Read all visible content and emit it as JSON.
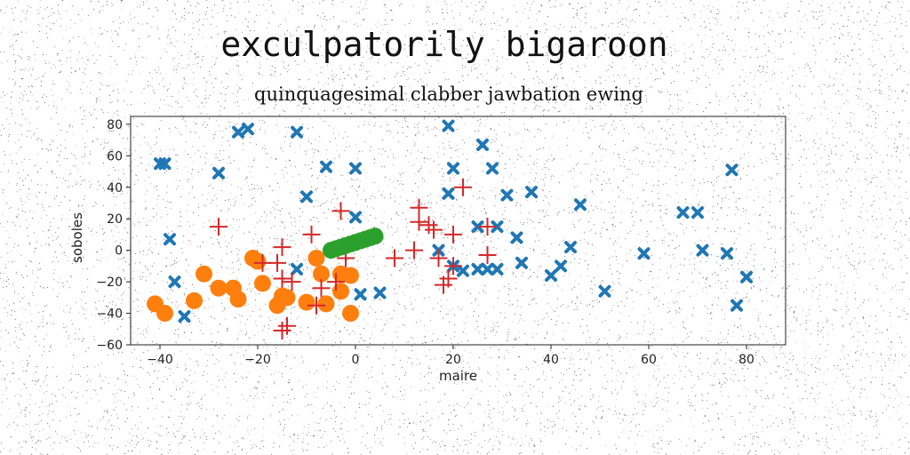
{
  "title": "exculpatorily bigaroon",
  "subtitle": "quinquagesimal clabber jawbation ewing",
  "chart_data": {
    "type": "scatter",
    "xlabel": "maire",
    "ylabel": "soboles",
    "xlim": [
      -46,
      88
    ],
    "ylim": [
      -60,
      85
    ],
    "xticks": [
      -40,
      -20,
      0,
      20,
      40,
      60,
      80
    ],
    "yticks": [
      -60,
      -40,
      -20,
      0,
      20,
      40,
      60,
      80
    ],
    "grid": false,
    "legend": "none",
    "series": [
      {
        "marker": "x-thick",
        "color": "#1f77b4",
        "points": [
          [
            -40,
            55
          ],
          [
            -39,
            55
          ],
          [
            -38,
            7
          ],
          [
            -37,
            -20
          ],
          [
            -35,
            -42
          ],
          [
            -28,
            49
          ],
          [
            -24,
            75
          ],
          [
            -22,
            77
          ],
          [
            -12,
            75
          ],
          [
            -12,
            -12
          ],
          [
            -10,
            34
          ],
          [
            -6,
            53
          ],
          [
            0,
            52
          ],
          [
            0,
            21
          ],
          [
            1,
            -28
          ],
          [
            5,
            -27
          ],
          [
            19,
            79
          ],
          [
            19,
            36
          ],
          [
            20,
            52
          ],
          [
            17,
            0
          ],
          [
            20,
            -10
          ],
          [
            22,
            -13
          ],
          [
            25,
            15
          ],
          [
            25,
            -12
          ],
          [
            26,
            67
          ],
          [
            27,
            -12
          ],
          [
            28,
            52
          ],
          [
            29,
            -12
          ],
          [
            29,
            15
          ],
          [
            31,
            35
          ],
          [
            33,
            8
          ],
          [
            34,
            -8
          ],
          [
            36,
            37
          ],
          [
            40,
            -16
          ],
          [
            42,
            -10
          ],
          [
            44,
            2
          ],
          [
            46,
            29
          ],
          [
            51,
            -26
          ],
          [
            59,
            -2
          ],
          [
            67,
            24
          ],
          [
            70,
            24
          ],
          [
            71,
            0
          ],
          [
            76,
            -2
          ],
          [
            77,
            51
          ],
          [
            78,
            -35
          ],
          [
            80,
            -17
          ]
        ]
      },
      {
        "marker": "circle",
        "color": "#ff7f0e",
        "points": [
          [
            -41,
            -34
          ],
          [
            -39,
            -40
          ],
          [
            -33,
            -32
          ],
          [
            -31,
            -15
          ],
          [
            -28,
            -24
          ],
          [
            -25,
            -24
          ],
          [
            -24,
            -31
          ],
          [
            -21,
            -5
          ],
          [
            -20,
            -7
          ],
          [
            -19,
            -21
          ],
          [
            -16,
            -35
          ],
          [
            -15,
            -29
          ],
          [
            -14,
            -30
          ],
          [
            -10,
            -33
          ],
          [
            -8,
            -5
          ],
          [
            -7,
            -15
          ],
          [
            -6,
            -34
          ],
          [
            -3,
            -15
          ],
          [
            -3,
            -26
          ],
          [
            -1,
            -16
          ],
          [
            -1,
            -40
          ]
        ]
      },
      {
        "marker": "plus",
        "color": "#d62728",
        "points": [
          [
            -28,
            15
          ],
          [
            -19,
            -8
          ],
          [
            -15,
            2
          ],
          [
            -16,
            -8
          ],
          [
            -15,
            -18
          ],
          [
            -14,
            -48
          ],
          [
            -15,
            -51
          ],
          [
            -13,
            -20
          ],
          [
            -9,
            10
          ],
          [
            -8,
            -35
          ],
          [
            -7,
            -24
          ],
          [
            -3,
            25
          ],
          [
            -4,
            -20
          ],
          [
            -2,
            -5
          ],
          [
            8,
            -5
          ],
          [
            12,
            0
          ],
          [
            13,
            27
          ],
          [
            13,
            18
          ],
          [
            15,
            16
          ],
          [
            16,
            13
          ],
          [
            17,
            -5
          ],
          [
            18,
            -22
          ],
          [
            19,
            -18
          ],
          [
            20,
            10
          ],
          [
            20,
            -10
          ],
          [
            22,
            40
          ],
          [
            27,
            15
          ],
          [
            27,
            -3
          ]
        ]
      },
      {
        "marker": "circle",
        "color": "#2ca02c",
        "points": [
          [
            -5,
            0
          ],
          [
            -4,
            1
          ],
          [
            -3,
            2
          ],
          [
            -2,
            3
          ],
          [
            -1,
            4
          ],
          [
            0,
            5
          ],
          [
            1,
            6
          ],
          [
            2,
            7
          ],
          [
            3,
            8
          ],
          [
            4,
            9
          ]
        ]
      }
    ]
  }
}
